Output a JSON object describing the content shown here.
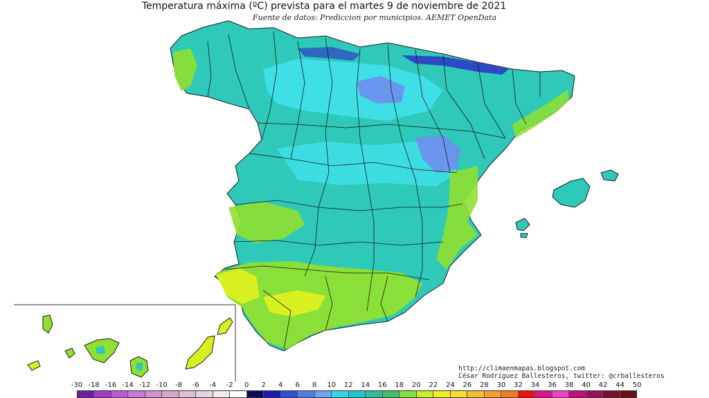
{
  "map": {
    "title": "Temperatura máxima (ºC) prevista para el martes 9 de noviembre de 2021",
    "subtitle": "Fuente de datos: Prediccion por municipios. AEMET OpenData",
    "credits": [
      "http://climaenmapas.blogspot.com",
      "César Rodríguez Ballesteros, twitter: @crballesteros"
    ]
  },
  "legend": {
    "ticks": [
      "-30",
      "-18",
      "-16",
      "-14",
      "-12",
      "-10",
      "-8",
      "-6",
      "-4",
      "-2",
      "0",
      "2",
      "4",
      "6",
      "8",
      "10",
      "12",
      "14",
      "16",
      "18",
      "20",
      "22",
      "24",
      "26",
      "28",
      "30",
      "32",
      "34",
      "36",
      "38",
      "40",
      "42",
      "44",
      "50"
    ],
    "colors": [
      "#6b1fa8",
      "#9c3cc8",
      "#b85ad6",
      "#c77ad9",
      "#cf94cf",
      "#d7a8cf",
      "#dfbfd7",
      "#e8d4e0",
      "#f1e9ee",
      "#ffffff",
      "#0b0b5e",
      "#1a1ab5",
      "#2f4fd9",
      "#4e7ee6",
      "#6aa7f0",
      "#2fd8e8",
      "#1cc8c8",
      "#2dbf9f",
      "#3fbf6f",
      "#7fe040",
      "#c8f020",
      "#f0f020",
      "#f6e02a",
      "#f4c02a",
      "#f4a030",
      "#f47a20",
      "#f01010",
      "#e01090",
      "#f040c8",
      "#c0107a",
      "#9a1060",
      "#7a1030",
      "#6a1010"
    ]
  },
  "colors": {
    "sea": "#ffffff",
    "land_main": "#2ec9b8",
    "cold": "#41e3ef",
    "colder": "#6f8ef0",
    "coldest": "#2a2ac8",
    "warm": "#8fe030",
    "warmer": "#d8f020",
    "border": "#1a1a1a"
  }
}
